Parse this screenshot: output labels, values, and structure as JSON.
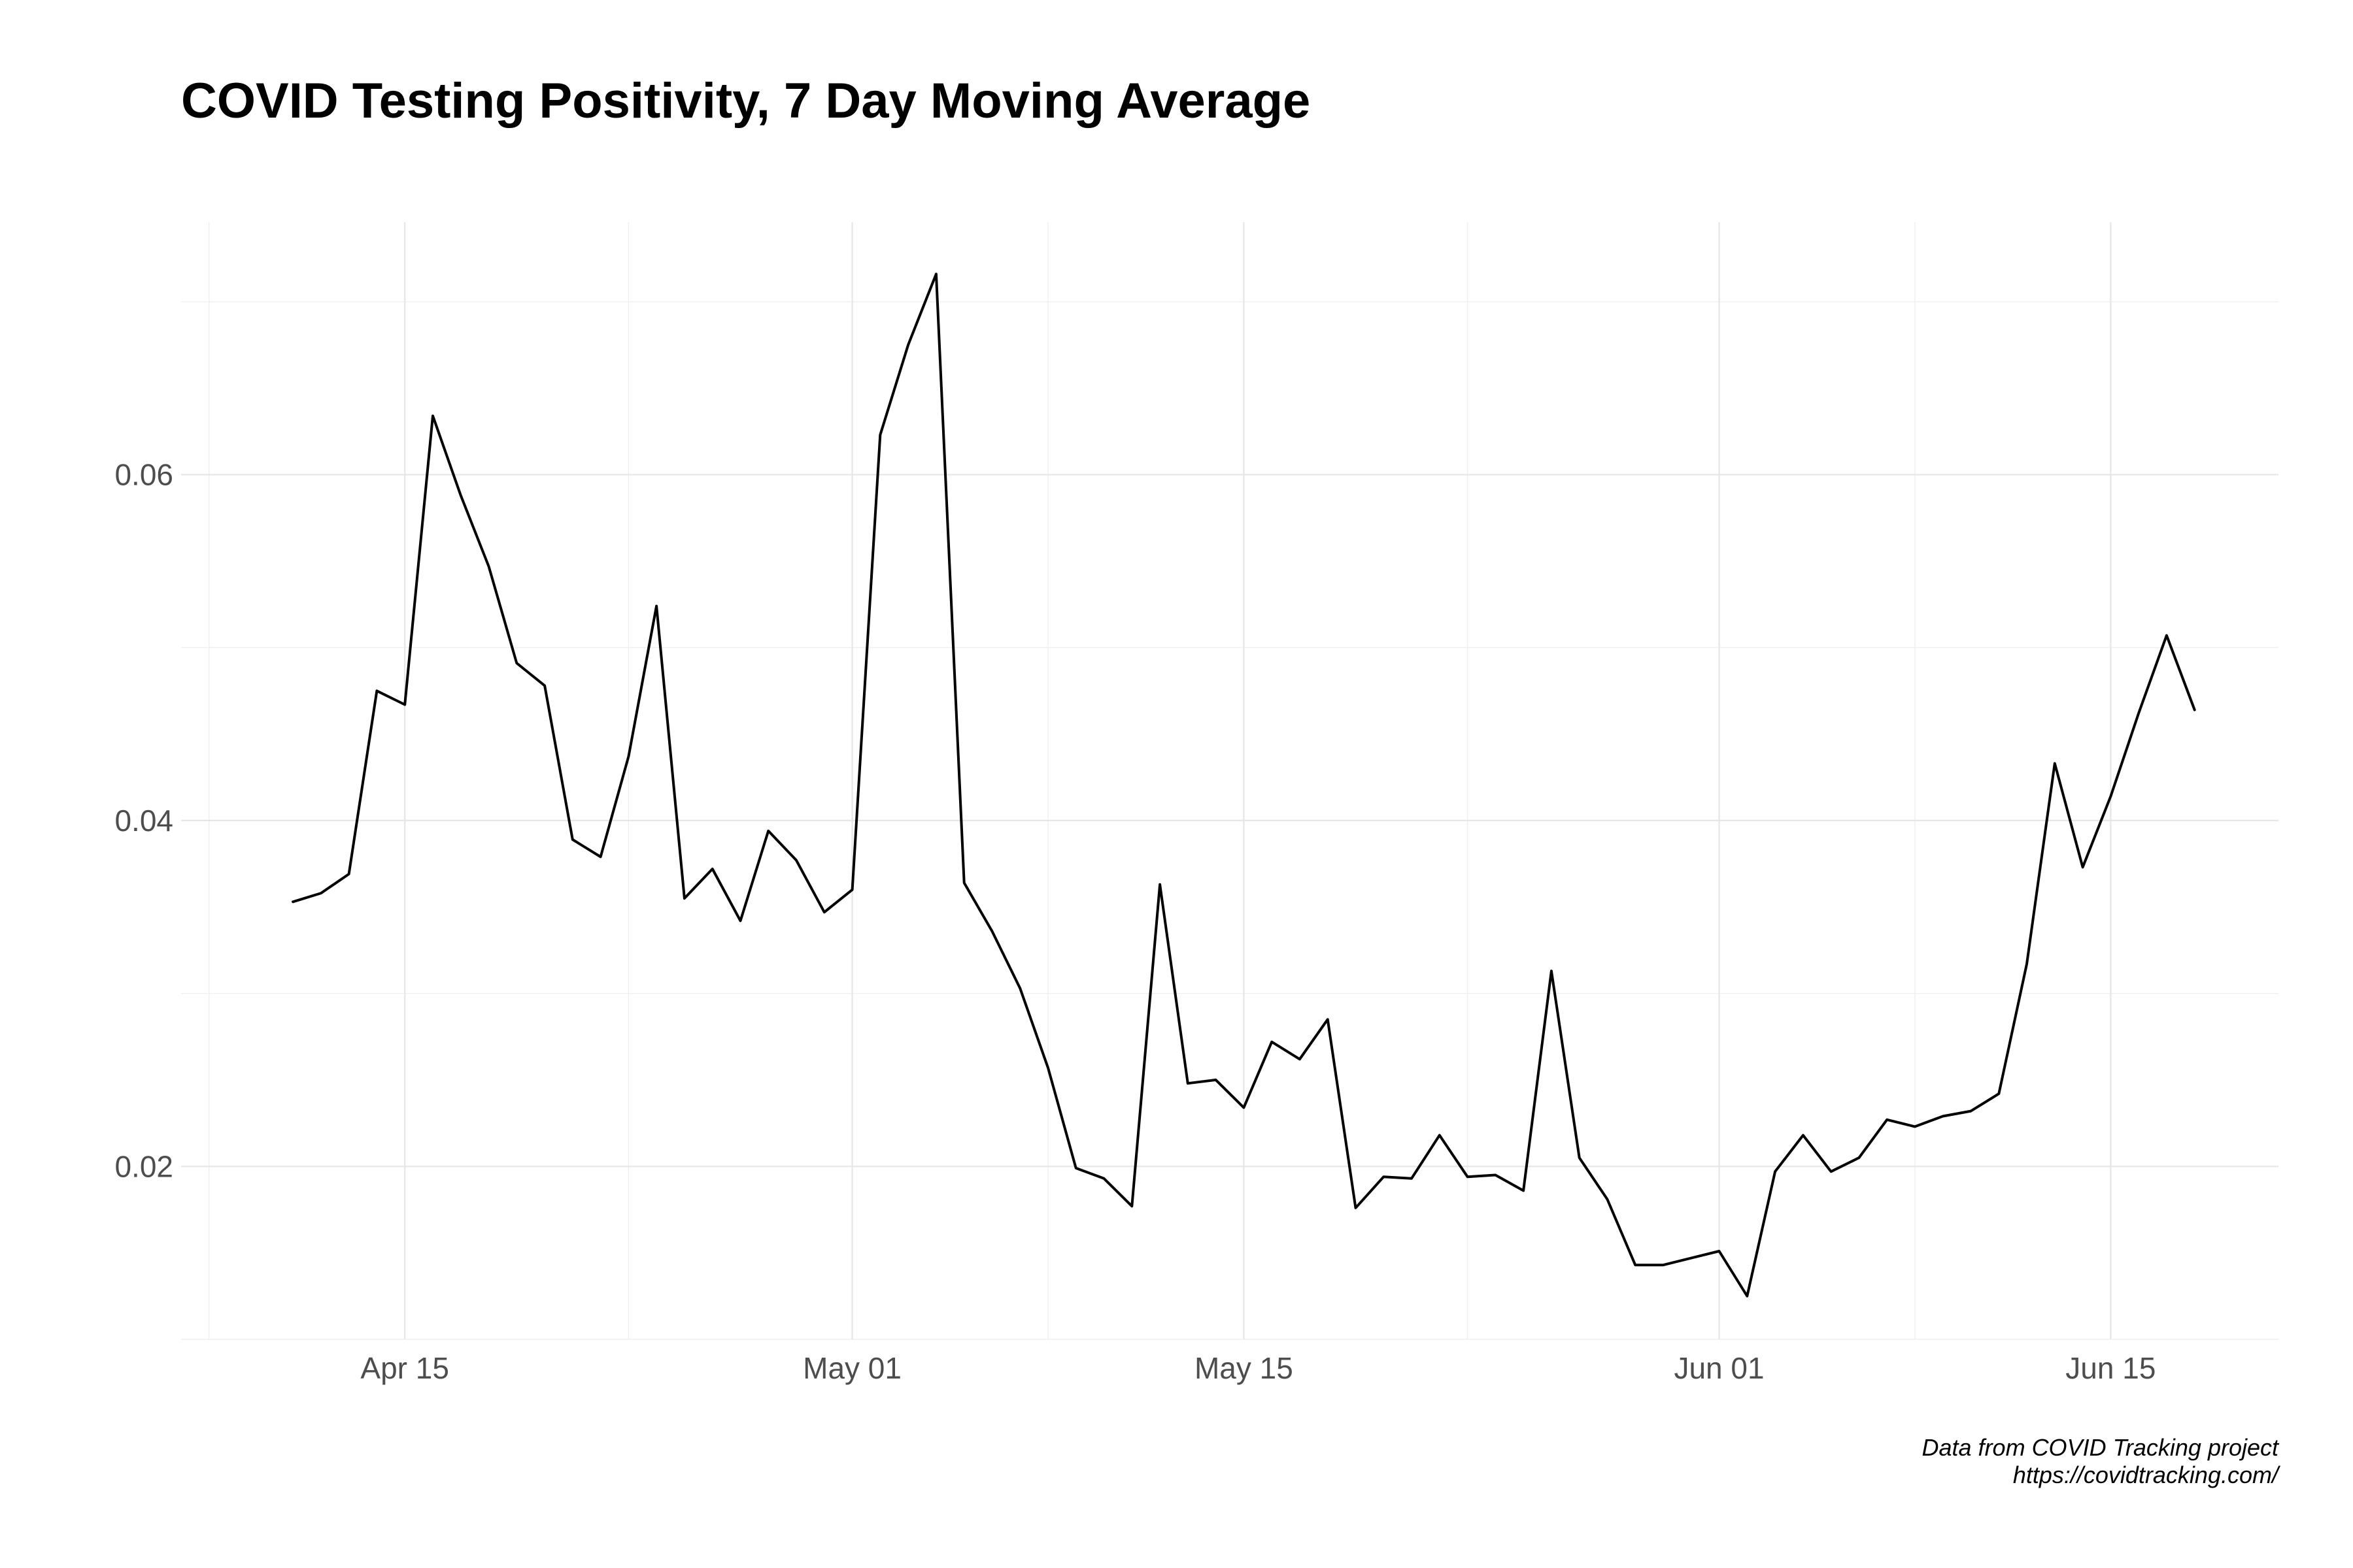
{
  "chart_data": {
    "type": "line",
    "title": "COVID Testing Positivity, 7 Day Moving Average",
    "xlabel": "",
    "ylabel": "",
    "caption": [
      "Data from COVID Tracking project",
      "https://covidtracking.com/"
    ],
    "x_tick_labels": [
      "Apr 15",
      "May 01",
      "May 15",
      "Jun 01",
      "Jun 15"
    ],
    "x_ticks": [
      "2020-04-15",
      "2020-05-01",
      "2020-05-15",
      "2020-06-01",
      "2020-06-15"
    ],
    "x_minor_ticks": [
      "2020-04-08",
      "2020-04-23",
      "2020-05-08",
      "2020-05-23",
      "2020-06-08"
    ],
    "xlim": [
      "2020-04-07",
      "2020-06-21"
    ],
    "y_tick_labels": [
      "0.02",
      "0.04",
      "0.06"
    ],
    "y_ticks": [
      0.02,
      0.04,
      0.06
    ],
    "y_minor_ticks": [
      0.01,
      0.03,
      0.05,
      0.07
    ],
    "ylim": [
      0.01,
      0.0746
    ],
    "grid": true,
    "legend": "none",
    "line_color": "#000000",
    "series": [
      {
        "x": [
          "2020-04-11",
          "2020-04-12",
          "2020-04-13",
          "2020-04-14",
          "2020-04-15",
          "2020-04-16",
          "2020-04-17",
          "2020-04-18",
          "2020-04-19",
          "2020-04-20",
          "2020-04-21",
          "2020-04-22",
          "2020-04-23",
          "2020-04-24",
          "2020-04-25",
          "2020-04-26",
          "2020-04-27",
          "2020-04-28",
          "2020-04-29",
          "2020-04-30",
          "2020-05-01",
          "2020-05-02",
          "2020-05-03",
          "2020-05-04",
          "2020-05-05",
          "2020-05-06",
          "2020-05-07",
          "2020-05-08",
          "2020-05-09",
          "2020-05-10",
          "2020-05-11",
          "2020-05-12",
          "2020-05-13",
          "2020-05-14",
          "2020-05-15",
          "2020-05-16",
          "2020-05-17",
          "2020-05-18",
          "2020-05-19",
          "2020-05-20",
          "2020-05-21",
          "2020-05-22",
          "2020-05-23",
          "2020-05-24",
          "2020-05-25",
          "2020-05-26",
          "2020-05-27",
          "2020-05-28",
          "2020-05-29",
          "2020-05-30",
          "2020-05-31",
          "2020-06-01",
          "2020-06-02",
          "2020-06-03",
          "2020-06-04",
          "2020-06-05",
          "2020-06-06",
          "2020-06-07",
          "2020-06-08",
          "2020-06-09",
          "2020-06-10",
          "2020-06-11",
          "2020-06-12",
          "2020-06-13",
          "2020-06-14",
          "2020-06-15",
          "2020-06-16",
          "2020-06-17",
          "2020-06-18"
        ],
        "values": [
          0.0353,
          0.0358,
          0.0369,
          0.0475,
          0.0467,
          0.0634,
          0.0588,
          0.0547,
          0.0491,
          0.0478,
          0.0389,
          0.0379,
          0.0437,
          0.0524,
          0.0355,
          0.0372,
          0.0342,
          0.0394,
          0.0377,
          0.0347,
          0.036,
          0.0623,
          0.0675,
          0.0716,
          0.0364,
          0.0336,
          0.0303,
          0.0257,
          0.0199,
          0.0193,
          0.0177,
          0.0363,
          0.0248,
          0.025,
          0.0234,
          0.0272,
          0.0262,
          0.0285,
          0.0176,
          0.0194,
          0.0193,
          0.0218,
          0.0194,
          0.0195,
          0.0186,
          0.0313,
          0.0205,
          0.0181,
          0.0143,
          0.0143,
          0.0147,
          0.0151,
          0.0125,
          0.0197,
          0.0218,
          0.0197,
          0.0205,
          0.0227,
          0.0223,
          0.0229,
          0.0232,
          0.0242,
          0.0317,
          0.0433,
          0.0373,
          0.0414,
          0.0462,
          0.0507,
          0.0464
        ]
      }
    ]
  }
}
